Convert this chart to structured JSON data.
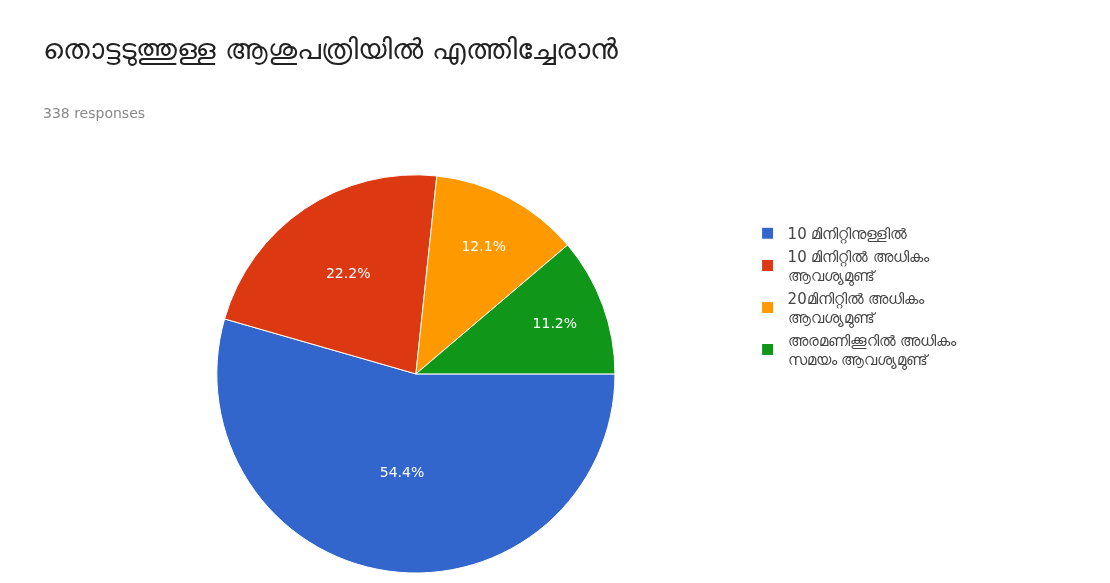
{
  "chart_data": {
    "type": "pie",
    "title": "തൊട്ടടുത്തുള്ള ആശുപത്രിയിൽ എത്തിച്ചേരാൻ",
    "subtitle": "338 responses",
    "categories": [
      "10 മിനിറ്റിനുള്ളിൽ",
      "10 മിനിറ്റിൽ അധികം ആവശ്യമുണ്ട്",
      "20മിനിറ്റിൽ അധികം ആവശ്യമുണ്ട്",
      "അരമണിക്കൂറിൽ അധികം സമയം ആവശ്യമുണ്ട്"
    ],
    "values": [
      54.4,
      22.2,
      12.1,
      11.2
    ],
    "value_labels": [
      "54.4%",
      "22.2%",
      "12.1%",
      "11.2%"
    ],
    "colors": [
      "#3366cc",
      "#dc3912",
      "#ff9900",
      "#109618"
    ],
    "legend": "right"
  }
}
